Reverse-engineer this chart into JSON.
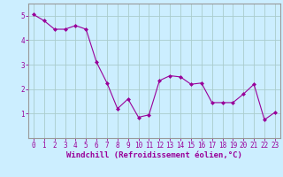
{
  "x": [
    0,
    1,
    2,
    3,
    4,
    5,
    6,
    7,
    8,
    9,
    10,
    11,
    12,
    13,
    14,
    15,
    16,
    17,
    18,
    19,
    20,
    21,
    22,
    23
  ],
  "y": [
    5.05,
    4.8,
    4.45,
    4.45,
    4.6,
    4.45,
    3.1,
    2.25,
    1.2,
    1.6,
    0.85,
    0.95,
    2.35,
    2.55,
    2.5,
    2.2,
    2.25,
    1.45,
    1.45,
    1.45,
    1.8,
    2.2,
    0.75,
    1.05
  ],
  "line_color": "#990099",
  "marker": "D",
  "marker_size": 2,
  "bg_color": "#cceeff",
  "grid_color": "#aacccc",
  "xlabel": "Windchill (Refroidissement éolien,°C)",
  "xlabel_color": "#990099",
  "tick_color": "#990099",
  "axis_color": "#999999",
  "ylim": [
    0,
    5.5
  ],
  "xlim": [
    -0.5,
    23.5
  ],
  "yticks": [
    1,
    2,
    3,
    4,
    5
  ],
  "xticks": [
    0,
    1,
    2,
    3,
    4,
    5,
    6,
    7,
    8,
    9,
    10,
    11,
    12,
    13,
    14,
    15,
    16,
    17,
    18,
    19,
    20,
    21,
    22,
    23
  ],
  "xtick_labels": [
    "0",
    "1",
    "2",
    "3",
    "4",
    "5",
    "6",
    "7",
    "8",
    "9",
    "10",
    "11",
    "12",
    "13",
    "14",
    "15",
    "16",
    "17",
    "18",
    "19",
    "20",
    "21",
    "22",
    "23"
  ],
  "xlabel_fontsize": 6.5,
  "tick_fontsize": 5.5
}
